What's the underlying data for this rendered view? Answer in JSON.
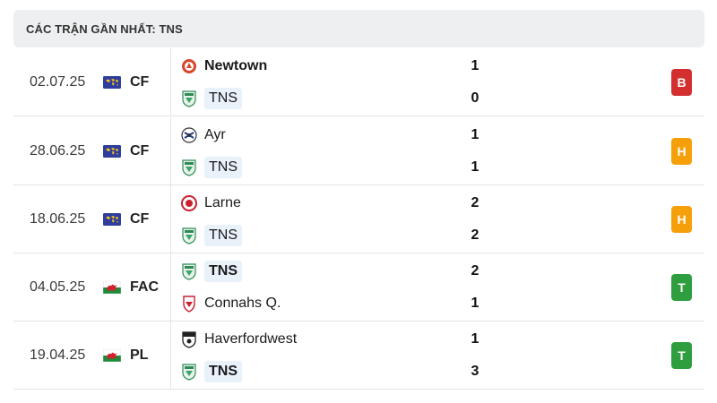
{
  "header": {
    "title": "CÁC TRẬN GẦN NHẤT: TNS"
  },
  "colors": {
    "loss": "#d32f2f",
    "draw": "#f5a00a",
    "win": "#2e9e3f",
    "highlight": "#e9f1fb"
  },
  "matches": [
    {
      "date": "02.07.25",
      "competition": "CF",
      "competition_icon": "world-flag-icon",
      "home": {
        "name": "Newtown",
        "crest_icon": "newtown-crest-icon",
        "bold": true,
        "highlight": false
      },
      "away": {
        "name": "TNS",
        "crest_icon": "tns-crest-icon",
        "bold": false,
        "highlight": true
      },
      "home_score": "1",
      "away_score": "0",
      "result": "B",
      "result_type": "loss"
    },
    {
      "date": "28.06.25",
      "competition": "CF",
      "competition_icon": "world-flag-icon",
      "home": {
        "name": "Ayr",
        "crest_icon": "ayr-crest-icon",
        "bold": false,
        "highlight": false
      },
      "away": {
        "name": "TNS",
        "crest_icon": "tns-crest-icon",
        "bold": false,
        "highlight": true
      },
      "home_score": "1",
      "away_score": "1",
      "result": "H",
      "result_type": "draw"
    },
    {
      "date": "18.06.25",
      "competition": "CF",
      "competition_icon": "world-flag-icon",
      "home": {
        "name": "Larne",
        "crest_icon": "larne-crest-icon",
        "bold": false,
        "highlight": false
      },
      "away": {
        "name": "TNS",
        "crest_icon": "tns-crest-icon",
        "bold": false,
        "highlight": true
      },
      "home_score": "2",
      "away_score": "2",
      "result": "H",
      "result_type": "draw"
    },
    {
      "date": "04.05.25",
      "competition": "FAC",
      "competition_icon": "wales-flag-icon",
      "home": {
        "name": "TNS",
        "crest_icon": "tns-crest-icon",
        "bold": true,
        "highlight": true
      },
      "away": {
        "name": "Connahs Q.",
        "crest_icon": "connahs-quay-crest-icon",
        "bold": false,
        "highlight": false
      },
      "home_score": "2",
      "away_score": "1",
      "result": "T",
      "result_type": "win"
    },
    {
      "date": "19.04.25",
      "competition": "PL",
      "competition_icon": "wales-flag-icon",
      "home": {
        "name": "Haverfordwest",
        "crest_icon": "haverfordwest-crest-icon",
        "bold": false,
        "highlight": false
      },
      "away": {
        "name": "TNS",
        "crest_icon": "tns-crest-icon",
        "bold": true,
        "highlight": true
      },
      "home_score": "1",
      "away_score": "3",
      "result": "T",
      "result_type": "win"
    }
  ]
}
